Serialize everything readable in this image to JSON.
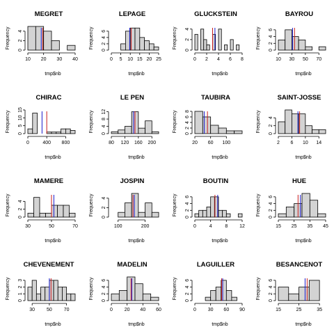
{
  "colors": {
    "bar_fill": "#d3d3d3",
    "bar_stroke": "#000000",
    "mean_line": "#c81e1e",
    "median_line": "#1a1acc",
    "background": "#ffffff"
  },
  "chart_data": [
    {
      "type": "bar",
      "title": "MEGRET",
      "xlabel": "tmp$nb",
      "ylabel": "Frequency",
      "breaks": [
        10,
        15,
        20,
        25,
        30,
        35,
        40
      ],
      "counts": [
        5,
        5,
        4,
        2,
        0,
        1
      ],
      "xticks": [
        10,
        20,
        30,
        40
      ],
      "xlim": [
        10,
        40
      ],
      "yticks": [
        0,
        2,
        4
      ],
      "ylim": [
        0,
        5
      ],
      "mean": 19.5,
      "median": 18.5
    },
    {
      "type": "bar",
      "title": "LEPAGE",
      "xlabel": "tmp$nb",
      "ylabel": "Frequency",
      "breaks": [
        0,
        2.5,
        5,
        7.5,
        10,
        12.5,
        15,
        17.5,
        20,
        22.5,
        25
      ],
      "counts": [
        0,
        0,
        2,
        6,
        7,
        7,
        4,
        3,
        2,
        1
      ],
      "xticks": [
        0,
        5,
        10,
        15,
        20,
        25
      ],
      "xlim": [
        0,
        25
      ],
      "yticks": [
        0,
        2,
        4,
        6
      ],
      "ylim": [
        0,
        7.5
      ],
      "mean": 10.5,
      "median": 9.7
    },
    {
      "type": "bar",
      "title": "GLUCKSTEIN",
      "xlabel": "tmp$nb",
      "ylabel": "Frequency",
      "breaks": [
        0,
        0.5,
        1,
        1.5,
        2,
        2.5,
        3,
        3.5,
        4,
        4.5,
        5,
        5.5,
        6,
        6.5,
        7,
        7.5,
        8
      ],
      "counts": [
        3,
        0,
        4,
        2,
        1,
        0,
        3,
        0,
        4,
        0,
        1,
        0,
        2,
        0,
        1,
        0
      ],
      "xticks": [
        0,
        2,
        4,
        6,
        8
      ],
      "xlim": [
        0,
        8
      ],
      "yticks": [
        0,
        2,
        4
      ],
      "ylim": [
        0,
        4.5
      ],
      "mean": 3.0,
      "median": 3.4
    },
    {
      "type": "bar",
      "title": "BAYROU",
      "xlabel": "tmp$nb",
      "ylabel": "Frequency",
      "breaks": [
        10,
        20,
        30,
        40,
        50,
        60,
        70,
        80
      ],
      "counts": [
        3,
        6,
        4,
        3,
        1,
        0,
        1
      ],
      "xticks": [
        10,
        30,
        50,
        70
      ],
      "xlim": [
        10,
        80
      ],
      "yticks": [
        0,
        2,
        4,
        6
      ],
      "ylim": [
        0,
        7
      ],
      "mean": 34,
      "median": 31
    },
    {
      "type": "bar",
      "title": "CHIRAC",
      "xlabel": "tmp$nb",
      "ylabel": "Frequency",
      "breaks": [
        0,
        100,
        200,
        300,
        400,
        500,
        600,
        700,
        800,
        900,
        1000
      ],
      "counts": [
        3,
        13,
        0,
        0,
        1,
        1,
        1,
        3,
        3,
        2
      ],
      "xticks": [
        0,
        400,
        800
      ],
      "xlim": [
        0,
        1000
      ],
      "yticks": [
        0,
        5,
        10,
        15
      ],
      "ylim": [
        0,
        15
      ],
      "mean": 400,
      "median": 300
    },
    {
      "type": "bar",
      "title": "LE PEN",
      "xlabel": "tmp$nb",
      "ylabel": "Frequency",
      "breaks": [
        80,
        100,
        120,
        140,
        160,
        180,
        200,
        220
      ],
      "counts": [
        1,
        2,
        4,
        12,
        3,
        7,
        1
      ],
      "xticks": [
        80,
        120,
        160,
        200
      ],
      "xlim": [
        80,
        220
      ],
      "yticks": [
        0,
        4,
        8,
        12
      ],
      "ylim": [
        0,
        13
      ],
      "mean": 150,
      "median": 146
    },
    {
      "type": "bar",
      "title": "TAUBIRA",
      "xlabel": "tmp$nb",
      "ylabel": "Frequency",
      "breaks": [
        20,
        40,
        60,
        80,
        100,
        120,
        140
      ],
      "counts": [
        8,
        6,
        3,
        2,
        1,
        1
      ],
      "xticks": [
        20,
        60,
        100
      ],
      "xlim": [
        20,
        140
      ],
      "yticks": [
        0,
        2,
        4,
        6,
        8
      ],
      "ylim": [
        0,
        8.5
      ],
      "mean": 52,
      "median": 44
    },
    {
      "type": "bar",
      "title": "SAINT-JOSSE",
      "xlabel": "tmp$nb",
      "ylabel": "Frequency",
      "breaks": [
        2,
        4,
        6,
        8,
        10,
        12,
        14,
        16
      ],
      "counts": [
        3,
        6,
        5,
        5,
        2,
        1,
        1
      ],
      "xticks": [
        2,
        6,
        10,
        14
      ],
      "xlim": [
        2,
        16
      ],
      "yticks": [
        0,
        2,
        4
      ],
      "ylim": [
        0,
        6
      ],
      "mean": 8.3,
      "median": 7.8
    },
    {
      "type": "bar",
      "title": "MAMERE",
      "xlabel": "tmp$nb",
      "ylabel": "Frequency",
      "breaks": [
        30,
        35,
        40,
        45,
        50,
        55,
        60,
        65,
        70
      ],
      "counts": [
        1,
        5,
        1,
        1,
        3,
        3,
        3,
        1
      ],
      "xticks": [
        30,
        50,
        70
      ],
      "xlim": [
        30,
        70
      ],
      "yticks": [
        0,
        2,
        4
      ],
      "ylim": [
        0,
        6
      ],
      "mean": 50,
      "median": 52
    },
    {
      "type": "bar",
      "title": "JOSPIN",
      "xlabel": "tmp$nb",
      "ylabel": "Frequency",
      "breaks": [
        100,
        125,
        150,
        175,
        200,
        225,
        250
      ],
      "counts": [
        1,
        3,
        5,
        1,
        3,
        1
      ],
      "xticks": [
        100,
        200
      ],
      "xlim": [
        75,
        250
      ],
      "yticks": [
        0,
        2,
        4
      ],
      "ylim": [
        0,
        5
      ],
      "mean": 155,
      "median": 160
    },
    {
      "type": "bar",
      "title": "BOUTIN",
      "xlabel": "tmp$nb",
      "ylabel": "Frequency",
      "breaks": [
        0,
        1,
        2,
        3,
        4,
        5,
        6,
        7,
        8,
        9,
        10,
        11,
        12
      ],
      "counts": [
        1,
        2,
        2,
        3,
        6,
        6,
        2,
        2,
        1,
        0,
        0,
        1
      ],
      "xticks": [
        0,
        4,
        8,
        12
      ],
      "xlim": [
        0,
        12
      ],
      "yticks": [
        0,
        2,
        4,
        6
      ],
      "ylim": [
        0,
        7
      ],
      "mean": 5.1,
      "median": 5.8
    },
    {
      "type": "bar",
      "title": "HUE",
      "xlabel": "tmp$nb",
      "ylabel": "Frequency",
      "breaks": [
        15,
        20,
        25,
        30,
        35,
        40,
        45
      ],
      "counts": [
        1,
        3,
        4,
        7,
        5,
        1
      ],
      "xticks": [
        15,
        25,
        35,
        45
      ],
      "xlim": [
        15,
        45
      ],
      "yticks": [
        0,
        2,
        4,
        6
      ],
      "ylim": [
        0,
        7
      ],
      "mean": 27.5,
      "median": 29
    },
    {
      "type": "bar",
      "title": "CHEVENEMENT",
      "xlabel": "tmp$nb",
      "ylabel": "Frequency",
      "breaks": [
        25,
        30,
        35,
        40,
        45,
        50,
        55,
        60,
        65,
        70,
        75,
        80
      ],
      "counts": [
        2,
        3,
        1,
        2,
        2,
        3,
        3,
        2,
        2,
        1,
        1
      ],
      "xticks": [
        30,
        50,
        70
      ],
      "xlim": [
        25,
        80
      ],
      "yticks": [
        0,
        1,
        2,
        3
      ],
      "ylim": [
        0,
        3.5
      ],
      "mean": 52,
      "median": 50
    },
    {
      "type": "bar",
      "title": "MADELIN",
      "xlabel": "tmp$nb",
      "ylabel": "Frequency",
      "breaks": [
        0,
        10,
        20,
        30,
        40,
        50,
        60
      ],
      "counts": [
        2,
        3,
        7,
        5,
        2,
        1
      ],
      "xticks": [
        0,
        20,
        40,
        60
      ],
      "xlim": [
        0,
        60
      ],
      "yticks": [
        0,
        2,
        4,
        6
      ],
      "ylim": [
        0,
        7
      ],
      "mean": 25,
      "median": 26
    },
    {
      "type": "bar",
      "title": "LAGUILLER",
      "xlabel": "tmp$nb",
      "ylabel": "Frequency",
      "breaks": [
        0,
        10,
        20,
        30,
        40,
        50,
        60,
        70,
        80,
        90
      ],
      "counts": [
        0,
        0,
        1,
        3,
        4,
        6,
        3,
        1,
        0
      ],
      "xticks": [
        0,
        30,
        60,
        90
      ],
      "xlim": [
        0,
        90
      ],
      "yticks": [
        0,
        2,
        4,
        6
      ],
      "ylim": [
        0,
        7
      ],
      "mean": 51,
      "median": 53
    },
    {
      "type": "bar",
      "title": "BESANCENOT",
      "xlabel": "tmp$nb",
      "ylabel": "Frequency",
      "breaks": [
        15,
        20,
        25,
        30,
        35
      ],
      "counts": [
        4,
        2,
        4,
        6
      ],
      "xticks": [
        15,
        25,
        35
      ],
      "xlim": [
        15,
        38
      ],
      "yticks": [
        0,
        2,
        4,
        6
      ],
      "ylim": [
        0,
        7
      ],
      "mean": 29,
      "median": 28
    }
  ]
}
